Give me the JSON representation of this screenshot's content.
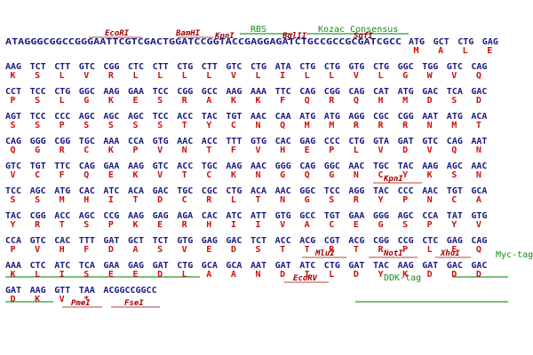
{
  "sequence_map": {
    "prefix": "ATAGGGCGGCCGGGAATTCGTCGACTGGATCCGGTACCGAGGAGATCTGCCGCCGCGATCGCC",
    "rows": [
      {
        "codons": [
          "ATG",
          "GCT",
          "CTG",
          "GAG"
        ],
        "aminos": [
          "M",
          "A",
          "L",
          "E"
        ]
      },
      {
        "codons": [
          "AAG",
          "TCT",
          "CTT",
          "GTC",
          "CGG",
          "CTC",
          "CTT",
          "CTG",
          "CTT",
          "GTC",
          "CTG",
          "ATA",
          "CTG",
          "CTG",
          "GTG",
          "CTG",
          "GGC",
          "TGG",
          "GTC",
          "CAG"
        ],
        "aminos": [
          "K",
          "S",
          "L",
          "V",
          "R",
          "L",
          "L",
          "L",
          "L",
          "V",
          "L",
          "I",
          "L",
          "L",
          "V",
          "L",
          "G",
          "W",
          "V",
          "Q"
        ]
      },
      {
        "codons": [
          "CCT",
          "TCC",
          "CTG",
          "GGC",
          "AAG",
          "GAA",
          "TCC",
          "CGG",
          "GCC",
          "AAG",
          "AAA",
          "TTC",
          "CAG",
          "CGG",
          "CAG",
          "CAT",
          "ATG",
          "GAC",
          "TCA",
          "GAC"
        ],
        "aminos": [
          "P",
          "S",
          "L",
          "G",
          "K",
          "E",
          "S",
          "R",
          "A",
          "K",
          "K",
          "F",
          "Q",
          "R",
          "Q",
          "H",
          "M",
          "D",
          "S",
          "D"
        ]
      },
      {
        "codons": [
          "AGT",
          "TCC",
          "CCC",
          "AGC",
          "AGC",
          "AGC",
          "TCC",
          "ACC",
          "TAC",
          "TGT",
          "AAC",
          "CAA",
          "ATG",
          "ATG",
          "AGG",
          "CGC",
          "CGG",
          "AAT",
          "ATG",
          "ACA"
        ],
        "aminos": [
          "S",
          "S",
          "P",
          "S",
          "S",
          "S",
          "S",
          "T",
          "Y",
          "C",
          "N",
          "Q",
          "M",
          "M",
          "R",
          "R",
          "R",
          "N",
          "M",
          "T"
        ]
      },
      {
        "codons": [
          "CAG",
          "GGG",
          "CGG",
          "TGC",
          "AAA",
          "CCA",
          "GTG",
          "AAC",
          "ACC",
          "TTT",
          "GTG",
          "CAC",
          "GAG",
          "CCC",
          "CTG",
          "GTA",
          "GAT",
          "GTC",
          "CAG",
          "AAT"
        ],
        "aminos": [
          "Q",
          "G",
          "R",
          "C",
          "K",
          "P",
          "V",
          "N",
          "T",
          "F",
          "V",
          "H",
          "E",
          "P",
          "L",
          "V",
          "D",
          "V",
          "Q",
          "N"
        ]
      },
      {
        "codons": [
          "GTC",
          "TGT",
          "TTC",
          "CAG",
          "GAA",
          "AAG",
          "GTC",
          "ACC",
          "TGC",
          "AAG",
          "AAC",
          "GGG",
          "CAG",
          "GGC",
          "AAC",
          "TGC",
          "TAC",
          "AAG",
          "AGC",
          "AAC"
        ],
        "aminos": [
          "V",
          "C",
          "F",
          "Q",
          "E",
          "K",
          "V",
          "T",
          "C",
          "K",
          "N",
          "G",
          "Q",
          "G",
          "N",
          "C",
          "Y",
          "K",
          "S",
          "N"
        ]
      },
      {
        "codons": [
          "TCC",
          "AGC",
          "ATG",
          "CAC",
          "ATC",
          "ACA",
          "GAC",
          "TGC",
          "CGC",
          "CTG",
          "ACA",
          "AAC",
          "GGC",
          "TCC",
          "AGG",
          "TAC",
          "CCC",
          "AAC",
          "TGT",
          "GCA"
        ],
        "aminos": [
          "S",
          "S",
          "M",
          "H",
          "I",
          "T",
          "D",
          "C",
          "R",
          "L",
          "T",
          "N",
          "G",
          "S",
          "R",
          "Y",
          "P",
          "N",
          "C",
          "A"
        ]
      },
      {
        "codons": [
          "TAC",
          "CGG",
          "ACC",
          "AGC",
          "CCG",
          "AAG",
          "GAG",
          "AGA",
          "CAC",
          "ATC",
          "ATT",
          "GTG",
          "GCC",
          "TGT",
          "GAA",
          "GGG",
          "AGC",
          "CCA",
          "TAT",
          "GTG"
        ],
        "aminos": [
          "Y",
          "R",
          "T",
          "S",
          "P",
          "K",
          "E",
          "R",
          "H",
          "I",
          "I",
          "V",
          "A",
          "C",
          "E",
          "G",
          "S",
          "P",
          "Y",
          "V"
        ]
      },
      {
        "codons": [
          "CCA",
          "GTC",
          "CAC",
          "TTT",
          "GAT",
          "GCT",
          "TCT",
          "GTG",
          "GAG",
          "GAC",
          "TCT",
          "ACC",
          "ACG",
          "CGT",
          "ACG",
          "CGG",
          "CCG",
          "CTC",
          "GAG",
          "CAG"
        ],
        "aminos": [
          "P",
          "V",
          "H",
          "F",
          "D",
          "A",
          "S",
          "V",
          "E",
          "D",
          "S",
          "T",
          "T",
          "R",
          "T",
          "R",
          "P",
          "L",
          "E",
          "Q"
        ]
      },
      {
        "codons": [
          "AAA",
          "CTC",
          "ATC",
          "TCA",
          "GAA",
          "GAG",
          "GAT",
          "CTG",
          "GCA",
          "GCA",
          "AAT",
          "GAT",
          "ATC",
          "CTG",
          "GAT",
          "TAC",
          "AAG",
          "GAT",
          "GAC",
          "GAC"
        ],
        "aminos": [
          "K",
          "L",
          "I",
          "S",
          "E",
          "E",
          "D",
          "L",
          "A",
          "A",
          "N",
          "D",
          "I",
          "L",
          "D",
          "Y",
          "K",
          "D",
          "D",
          "D"
        ]
      },
      {
        "codons": [
          "GAT",
          "AAG",
          "GTT",
          "TAA"
        ],
        "aminos": [
          "D",
          "K",
          "V",
          "*"
        ]
      }
    ],
    "suffix": "ACGGCCGGCC",
    "labels": {
      "ecori": "EcoRI",
      "bamhi": "BamHI",
      "kpni": "KpnI",
      "rbs": "RBS",
      "bglii": "BglII",
      "kozac": "Kozac Consensus",
      "sgfi": "SgfI",
      "kpni2": "KpnI",
      "mlui": "MluI",
      "noti": "NotI",
      "xhoi": "XhoI",
      "myc": "Myc-tag",
      "ecorv": "EcoRV",
      "ddk": "DDK-tag",
      "pmei": "PmeI",
      "fsei": "FseI"
    }
  }
}
